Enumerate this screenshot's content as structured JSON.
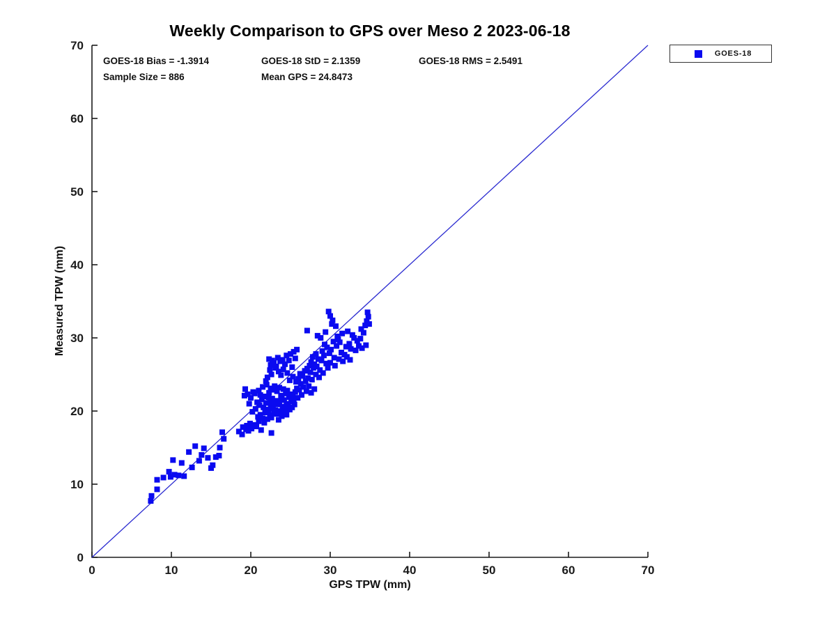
{
  "title": "Weekly Comparison to GPS over Meso 2 2023-06-18",
  "annotations": {
    "bias": "GOES-18 Bias = -1.3914",
    "std": "GOES-18 StD = 2.1359",
    "rms": "GOES-18 RMS = 2.5491",
    "sample_size": "Sample Size = 886",
    "mean_gps": "Mean GPS = 24.8473"
  },
  "legend": {
    "label": "GOES-18",
    "marker": "blue-square"
  },
  "colors": {
    "marker": "#0a0af0",
    "reference_line": "#2a2ad0",
    "axis": "#1a1a1a",
    "background": "#ffffff"
  },
  "chart_data": {
    "type": "scatter",
    "title": "Weekly Comparison to GPS over Meso 2 2023-06-18",
    "xlabel": "GPS TPW (mm)",
    "ylabel": "Measured TPW (mm)",
    "xlim": [
      0,
      70
    ],
    "ylim": [
      0,
      70
    ],
    "xticks": [
      0,
      10,
      20,
      30,
      40,
      50,
      60,
      70
    ],
    "yticks": [
      0,
      10,
      20,
      30,
      40,
      50,
      60,
      70
    ],
    "grid": false,
    "legend_position": "top-right-outside",
    "reference_line": {
      "from": [
        0,
        0
      ],
      "to": [
        70,
        70
      ]
    },
    "stats": {
      "bias": -1.3914,
      "std": 2.1359,
      "rms": 2.5491,
      "sample_size": 886,
      "mean_gps": 24.8473
    },
    "series": [
      {
        "name": "GOES-18",
        "marker": "square",
        "points": [
          [
            7.4,
            7.7
          ],
          [
            7.5,
            8.4
          ],
          [
            8.2,
            9.3
          ],
          [
            8.2,
            10.6
          ],
          [
            9.0,
            10.9
          ],
          [
            9.7,
            11.7
          ],
          [
            9.9,
            11.0
          ],
          [
            10.2,
            13.3
          ],
          [
            10.4,
            11.3
          ],
          [
            10.9,
            11.2
          ],
          [
            11.3,
            12.9
          ],
          [
            11.6,
            11.1
          ],
          [
            12.2,
            14.4
          ],
          [
            12.6,
            12.3
          ],
          [
            13.0,
            15.2
          ],
          [
            13.5,
            13.2
          ],
          [
            13.8,
            14.0
          ],
          [
            14.1,
            14.9
          ],
          [
            14.6,
            13.6
          ],
          [
            15.0,
            12.2
          ],
          [
            15.2,
            12.6
          ],
          [
            15.6,
            13.7
          ],
          [
            16.0,
            13.9
          ],
          [
            16.1,
            15.0
          ],
          [
            16.4,
            17.1
          ],
          [
            16.6,
            16.2
          ],
          [
            18.5,
            17.2
          ],
          [
            18.9,
            16.8
          ],
          [
            19.0,
            17.8
          ],
          [
            19.2,
            22.1
          ],
          [
            19.3,
            23.0
          ],
          [
            19.4,
            17.5
          ],
          [
            19.5,
            18.0
          ],
          [
            19.6,
            22.3
          ],
          [
            19.7,
            17.3
          ],
          [
            19.8,
            21.0
          ],
          [
            19.9,
            18.3
          ],
          [
            20.0,
            21.8
          ],
          [
            20.1,
            17.6
          ],
          [
            20.2,
            19.9
          ],
          [
            20.3,
            22.6
          ],
          [
            20.4,
            18.1
          ],
          [
            20.5,
            22.4
          ],
          [
            20.6,
            20.3
          ],
          [
            20.7,
            17.9
          ],
          [
            20.8,
            21.2
          ],
          [
            20.9,
            19.2
          ],
          [
            21.0,
            22.8
          ],
          [
            21.0,
            18.6
          ],
          [
            21.1,
            20.8
          ],
          [
            21.2,
            19.5
          ],
          [
            21.2,
            22.2
          ],
          [
            21.3,
            17.4
          ],
          [
            21.4,
            21.6
          ],
          [
            21.5,
            19.0
          ],
          [
            21.5,
            23.3
          ],
          [
            21.6,
            20.5
          ],
          [
            21.7,
            18.4
          ],
          [
            21.8,
            22.0
          ],
          [
            21.8,
            19.8
          ],
          [
            21.9,
            21.1
          ],
          [
            22.0,
            20.2
          ],
          [
            22.0,
            23.6
          ],
          [
            22.1,
            18.9
          ],
          [
            22.2,
            21.9
          ],
          [
            22.2,
            20.0
          ],
          [
            22.3,
            22.5
          ],
          [
            22.4,
            19.4
          ],
          [
            22.4,
            21.3
          ],
          [
            22.5,
            20.7
          ],
          [
            22.5,
            23.1
          ],
          [
            22.6,
            17.0
          ],
          [
            22.6,
            19.1
          ],
          [
            22.7,
            21.7
          ],
          [
            22.7,
            26.9
          ],
          [
            22.8,
            20.4
          ],
          [
            22.8,
            22.9
          ],
          [
            22.9,
            19.7
          ],
          [
            23.0,
            21.0
          ],
          [
            23.0,
            23.4
          ],
          [
            22.3,
            27.1
          ],
          [
            22.5,
            26.3
          ],
          [
            22.4,
            25.6
          ],
          [
            22.6,
            25.0
          ],
          [
            22.9,
            26.6
          ],
          [
            23.1,
            25.9
          ],
          [
            22.1,
            24.6
          ],
          [
            21.9,
            24.1
          ],
          [
            23.2,
            26.1
          ],
          [
            23.4,
            27.3
          ],
          [
            23.5,
            25.4
          ],
          [
            23.7,
            26.8
          ],
          [
            23.8,
            24.9
          ],
          [
            24.0,
            27.0
          ],
          [
            24.1,
            25.7
          ],
          [
            24.3,
            26.4
          ],
          [
            24.5,
            27.6
          ],
          [
            24.6,
            25.2
          ],
          [
            24.8,
            26.9
          ],
          [
            25.0,
            27.8
          ],
          [
            25.2,
            26.0
          ],
          [
            25.4,
            28.1
          ],
          [
            25.6,
            27.2
          ],
          [
            25.8,
            28.4
          ],
          [
            25.3,
            24.7
          ],
          [
            24.9,
            24.2
          ],
          [
            23.1,
            20.1
          ],
          [
            23.2,
            21.4
          ],
          [
            23.3,
            19.6
          ],
          [
            23.3,
            22.7
          ],
          [
            23.4,
            20.9
          ],
          [
            23.5,
            18.8
          ],
          [
            23.6,
            21.2
          ],
          [
            23.6,
            23.2
          ],
          [
            23.7,
            20.0
          ],
          [
            23.8,
            22.1
          ],
          [
            23.9,
            19.3
          ],
          [
            23.9,
            21.8
          ],
          [
            24.0,
            20.6
          ],
          [
            24.1,
            23.0
          ],
          [
            24.2,
            19.9
          ],
          [
            24.2,
            21.5
          ],
          [
            24.3,
            20.3
          ],
          [
            24.4,
            22.4
          ],
          [
            24.5,
            21.0
          ],
          [
            24.5,
            19.5
          ],
          [
            24.6,
            22.8
          ],
          [
            24.7,
            20.8
          ],
          [
            24.8,
            21.9
          ],
          [
            24.9,
            20.2
          ],
          [
            25.0,
            22.3
          ],
          [
            25.1,
            21.3
          ],
          [
            25.2,
            20.5
          ],
          [
            25.3,
            22.0
          ],
          [
            25.4,
            21.6
          ],
          [
            25.5,
            20.9
          ],
          [
            25.6,
            22.6
          ],
          [
            25.7,
            24.0
          ],
          [
            25.8,
            23.1
          ],
          [
            25.9,
            21.8
          ],
          [
            26.0,
            24.4
          ],
          [
            26.1,
            22.9
          ],
          [
            26.2,
            25.1
          ],
          [
            26.3,
            23.7
          ],
          [
            26.4,
            22.2
          ],
          [
            26.5,
            24.8
          ],
          [
            26.6,
            23.3
          ],
          [
            26.8,
            25.5
          ],
          [
            26.9,
            24.1
          ],
          [
            27.0,
            22.7
          ],
          [
            27.1,
            25.8
          ],
          [
            27.2,
            24.5
          ],
          [
            27.4,
            26.2
          ],
          [
            27.1,
            31.0
          ],
          [
            27.3,
            23.4
          ],
          [
            27.7,
            24.3
          ],
          [
            28.0,
            23.0
          ],
          [
            28.6,
            24.6
          ],
          [
            29.1,
            25.2
          ],
          [
            28.2,
            25.0
          ],
          [
            27.6,
            22.5
          ],
          [
            29.7,
            25.9
          ],
          [
            30.0,
            26.6
          ],
          [
            30.6,
            26.2
          ],
          [
            31.1,
            27.1
          ],
          [
            31.6,
            26.8
          ],
          [
            31.8,
            27.7
          ],
          [
            32.1,
            27.4
          ],
          [
            32.5,
            27.0
          ],
          [
            27.5,
            25.3
          ],
          [
            27.6,
            26.7
          ],
          [
            27.8,
            27.4
          ],
          [
            27.9,
            25.9
          ],
          [
            28.0,
            26.4
          ],
          [
            28.2,
            27.8
          ],
          [
            28.3,
            26.1
          ],
          [
            28.4,
            30.3
          ],
          [
            28.5,
            27.1
          ],
          [
            28.7,
            25.6
          ],
          [
            28.8,
            30.0
          ],
          [
            28.9,
            26.9
          ],
          [
            29.0,
            28.2
          ],
          [
            29.2,
            27.6
          ],
          [
            29.3,
            29.1
          ],
          [
            29.5,
            26.5
          ],
          [
            29.6,
            28.7
          ],
          [
            29.8,
            33.6
          ],
          [
            29.9,
            27.9
          ],
          [
            30.0,
            33.0
          ],
          [
            30.1,
            28.4
          ],
          [
            30.3,
            32.4
          ],
          [
            30.4,
            29.5
          ],
          [
            30.5,
            27.3
          ],
          [
            30.7,
            31.6
          ],
          [
            30.8,
            28.9
          ],
          [
            31.0,
            29.8
          ],
          [
            31.2,
            29.4
          ],
          [
            31.4,
            28.0
          ],
          [
            31.5,
            30.6
          ],
          [
            30.2,
            31.9
          ],
          [
            29.4,
            30.8
          ],
          [
            30.9,
            30.2
          ],
          [
            32.0,
            28.8
          ],
          [
            32.2,
            30.9
          ],
          [
            32.4,
            29.2
          ],
          [
            32.6,
            28.5
          ],
          [
            32.8,
            30.4
          ],
          [
            33.0,
            30.0
          ],
          [
            33.2,
            28.3
          ],
          [
            33.4,
            29.6
          ],
          [
            33.6,
            28.9
          ],
          [
            33.8,
            29.9
          ],
          [
            34.0,
            28.6
          ],
          [
            34.2,
            30.7
          ],
          [
            34.4,
            31.7
          ],
          [
            34.6,
            32.3
          ],
          [
            34.7,
            33.5
          ],
          [
            34.8,
            32.9
          ],
          [
            34.9,
            31.9
          ],
          [
            34.5,
            29.0
          ],
          [
            33.9,
            31.2
          ]
        ]
      }
    ]
  }
}
